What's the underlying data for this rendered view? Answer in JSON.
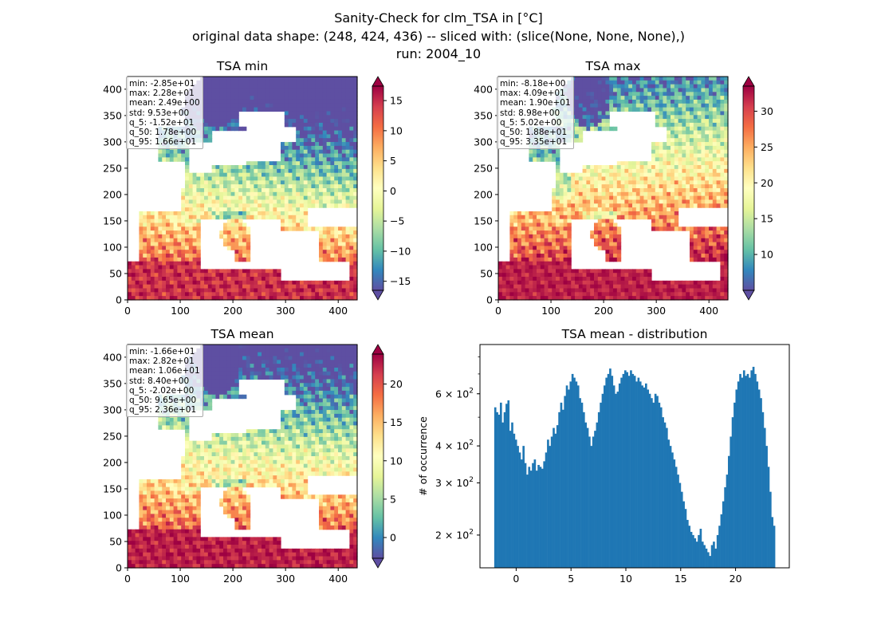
{
  "figure": {
    "title_lines": [
      "Sanity-Check for clm_TSA in [°C]",
      "original data shape: (248, 424, 436) -- sliced with: (slice(None, None, None),)",
      "run: 2004_10"
    ]
  },
  "colors": {
    "hist_bar": "#1f77b4",
    "colormap": "Spectral_r",
    "colormap_stops": [
      "#5e4fa2",
      "#3288bd",
      "#66c2a5",
      "#abdda4",
      "#e6f598",
      "#ffffbf",
      "#fee08b",
      "#fdae61",
      "#f46d43",
      "#d53e4f",
      "#9e0142"
    ]
  },
  "chart_data": [
    {
      "type": "heatmap",
      "title": "TSA min",
      "map_style": "min",
      "xlim": [
        0,
        436
      ],
      "ylim": [
        0,
        424
      ],
      "xticks": [
        0,
        100,
        200,
        300,
        400
      ],
      "yticks": [
        0,
        50,
        100,
        150,
        200,
        250,
        300,
        350,
        400
      ],
      "colorbar": {
        "range": [
          -16.5,
          17.4
        ],
        "ticks": [
          -15,
          -10,
          -5,
          0,
          5,
          10,
          15
        ],
        "tick_labels": [
          "−15",
          "−10",
          "−5",
          "0",
          "5",
          "10",
          "15"
        ],
        "extend": "both"
      },
      "stats": [
        "min: -2.85e+01",
        "max: 2.28e+01",
        "mean: 2.49e+00",
        "std: 9.53e+00",
        "q_5: -1.52e+01",
        "q_50: 1.78e+00",
        "q_95: 1.66e+01"
      ]
    },
    {
      "type": "heatmap",
      "title": "TSA max",
      "map_style": "max",
      "xlim": [
        0,
        436
      ],
      "ylim": [
        0,
        424
      ],
      "xticks": [
        0,
        100,
        200,
        300,
        400
      ],
      "yticks": [
        0,
        50,
        100,
        150,
        200,
        250,
        300,
        350,
        400
      ],
      "colorbar": {
        "range": [
          5.0,
          33.5
        ],
        "ticks": [
          10,
          15,
          20,
          25,
          30
        ],
        "tick_labels": [
          "10",
          "15",
          "20",
          "25",
          "30"
        ],
        "extend": "both"
      },
      "stats": [
        "min: -8.18e+00",
        "max: 4.09e+01",
        "mean: 1.90e+01",
        "std: 8.98e+00",
        "q_5: 5.02e+00",
        "q_50: 1.88e+01",
        "q_95: 3.35e+01"
      ]
    },
    {
      "type": "heatmap",
      "title": "TSA mean",
      "map_style": "mean",
      "xlim": [
        0,
        436
      ],
      "ylim": [
        0,
        424
      ],
      "xticks": [
        0,
        100,
        200,
        300,
        400
      ],
      "yticks": [
        0,
        50,
        100,
        150,
        200,
        250,
        300,
        350,
        400
      ],
      "colorbar": {
        "range": [
          -2.7,
          23.9
        ],
        "ticks": [
          0,
          5,
          10,
          15,
          20
        ],
        "tick_labels": [
          "0",
          "5",
          "10",
          "15",
          "20"
        ],
        "extend": "both"
      },
      "stats": [
        "min: -1.66e+01",
        "max: 2.82e+01",
        "mean: 1.06e+01",
        "std: 8.40e+00",
        "q_5: -2.02e+00",
        "q_50: 9.65e+00",
        "q_95: 2.36e+01"
      ]
    },
    {
      "type": "bar",
      "title": "TSA mean - distribution",
      "xlabel": "",
      "ylabel": "# of occurrence",
      "xlim": [
        -3.3,
        24.9
      ],
      "ylim": [
        155,
        880
      ],
      "yscale": "log",
      "xticks": [
        0,
        5,
        10,
        15,
        20
      ],
      "yticks_major": [
        200,
        300,
        400,
        600
      ],
      "ytick_labels": [
        [
          "2",
          "2"
        ],
        [
          "3",
          "2"
        ],
        [
          "4",
          "2"
        ],
        [
          "6",
          "2"
        ]
      ],
      "ytick_base": "10",
      "bin_range": [
        -2.0,
        23.6
      ],
      "values": [
        540,
        520,
        510,
        560,
        480,
        520,
        555,
        570,
        450,
        480,
        440,
        420,
        400,
        380,
        360,
        400,
        350,
        320,
        340,
        330,
        350,
        360,
        330,
        345,
        340,
        335,
        355,
        380,
        420,
        400,
        430,
        460,
        440,
        470,
        520,
        560,
        530,
        590,
        640,
        620,
        660,
        700,
        680,
        660,
        640,
        580,
        560,
        520,
        480,
        460,
        430,
        400,
        430,
        450,
        480,
        520,
        560,
        600,
        640,
        680,
        700,
        730,
        690,
        640,
        600,
        610,
        650,
        680,
        700,
        720,
        710,
        690,
        720,
        700,
        690,
        660,
        680,
        660,
        640,
        630,
        650,
        620,
        600,
        580,
        560,
        600,
        590,
        560,
        540,
        500,
        480,
        460,
        420,
        400,
        380,
        360,
        340,
        320,
        300,
        280,
        260,
        245,
        225,
        215,
        205,
        200,
        195,
        190,
        200,
        210,
        190,
        185,
        180,
        175,
        170,
        185,
        190,
        180,
        200,
        215,
        235,
        260,
        290,
        320,
        370,
        430,
        500,
        560,
        620,
        660,
        700,
        680,
        720,
        690,
        700,
        680,
        720,
        740,
        700,
        660,
        620,
        580,
        520,
        460,
        400,
        340,
        280,
        230,
        215
      ]
    }
  ]
}
